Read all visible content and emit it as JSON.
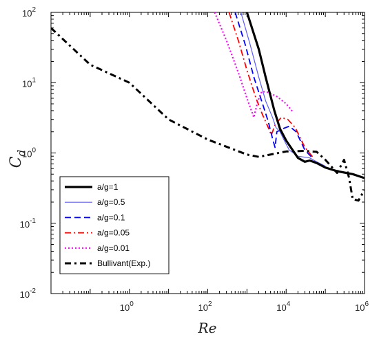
{
  "chart_data": {
    "type": "line",
    "xlabel": "Re",
    "ylabel_main": "C",
    "ylabel_sub": "d",
    "xscale": "log",
    "yscale": "log",
    "xlim": [
      0.01,
      1000000
    ],
    "ylim": [
      0.01,
      100
    ],
    "x_ticks": [
      {
        "base": "10",
        "exp": "0",
        "value": 1
      },
      {
        "base": "10",
        "exp": "2",
        "value": 100
      },
      {
        "base": "10",
        "exp": "4",
        "value": 10000
      },
      {
        "base": "10",
        "exp": "6",
        "value": 1000000
      }
    ],
    "y_ticks": [
      {
        "base": "10",
        "exp": "-2",
        "value": 0.01
      },
      {
        "base": "10",
        "exp": "-1",
        "value": 0.1
      },
      {
        "base": "10",
        "exp": "0",
        "value": 1
      },
      {
        "base": "10",
        "exp": "1",
        "value": 10
      },
      {
        "base": "10",
        "exp": "2",
        "value": 100
      }
    ],
    "grid": false,
    "legend_position": "bottom-left",
    "series": [
      {
        "name": "a/g=1",
        "color": "#000000",
        "dash": "solid",
        "width": 3.2,
        "points": [
          [
            1000,
            100
          ],
          [
            2000,
            30
          ],
          [
            3000,
            12
          ],
          [
            5000,
            4
          ],
          [
            7000,
            2.2
          ],
          [
            10000,
            1.5
          ],
          [
            20000,
            0.85
          ],
          [
            30000,
            0.75
          ],
          [
            40000,
            0.78
          ],
          [
            60000,
            0.72
          ],
          [
            100000,
            0.62
          ],
          [
            200000,
            0.55
          ],
          [
            500000,
            0.5
          ],
          [
            1000000,
            0.44
          ]
        ]
      },
      {
        "name": "a/g=0.5",
        "color": "#5a5aff",
        "dash": "solid",
        "width": 1.2,
        "points": [
          [
            700,
            100
          ],
          [
            1200,
            35
          ],
          [
            2000,
            12
          ],
          [
            3000,
            5.5
          ],
          [
            4500,
            3.2
          ],
          [
            5500,
            2.3
          ],
          [
            7000,
            2.0
          ],
          [
            9000,
            1.5
          ],
          [
            12000,
            1.1
          ],
          [
            20000,
            0.9
          ],
          [
            40000,
            0.85
          ],
          [
            60000,
            0.75
          ],
          [
            100000,
            0.65
          ]
        ]
      },
      {
        "name": "a/g=0.1",
        "color": "#0000ff",
        "dash": "dashed",
        "width": 1.8,
        "points": [
          [
            500,
            100
          ],
          [
            900,
            35
          ],
          [
            1500,
            12
          ],
          [
            2500,
            5
          ],
          [
            3500,
            2.8
          ],
          [
            4500,
            1.6
          ],
          [
            5200,
            1.2
          ],
          [
            5800,
            2.0
          ],
          [
            8000,
            2.2
          ],
          [
            12000,
            2.4
          ],
          [
            18000,
            2.0
          ],
          [
            30000,
            1.1
          ],
          [
            50000,
            0.82
          ]
        ]
      },
      {
        "name": "a/g=0.05",
        "color": "#ff0000",
        "dash": "dashdot",
        "width": 1.8,
        "points": [
          [
            350,
            100
          ],
          [
            600,
            40
          ],
          [
            1000,
            15
          ],
          [
            1700,
            6
          ],
          [
            2500,
            3.5
          ],
          [
            3500,
            2.3
          ],
          [
            4200,
            1.8
          ],
          [
            5200,
            2.5
          ],
          [
            7500,
            3.2
          ],
          [
            11000,
            3.0
          ],
          [
            17000,
            2.3
          ],
          [
            30000,
            1.2
          ],
          [
            50000,
            0.85
          ]
        ]
      },
      {
        "name": "a/g=0.01",
        "color": "#ff00ff",
        "dash": "dotted",
        "width": 2.2,
        "points": [
          [
            150,
            100
          ],
          [
            300,
            40
          ],
          [
            600,
            14
          ],
          [
            1000,
            6
          ],
          [
            1500,
            3.2
          ],
          [
            1900,
            5.5
          ],
          [
            2400,
            7.5
          ],
          [
            3500,
            7.3
          ],
          [
            6000,
            6.3
          ],
          [
            10000,
            5.0
          ],
          [
            15000,
            3.8
          ]
        ]
      },
      {
        "name": "Bullivant(Exp.)",
        "color": "#000000",
        "dash": "dashdotheavy",
        "width": 3.0,
        "points": [
          [
            0.01,
            60
          ],
          [
            0.1,
            18
          ],
          [
            1,
            10
          ],
          [
            10,
            3
          ],
          [
            100,
            1.55
          ],
          [
            1000,
            0.95
          ],
          [
            2000,
            0.88
          ],
          [
            3000,
            0.92
          ],
          [
            10000,
            1.05
          ],
          [
            30000,
            1.07
          ],
          [
            60000,
            1.04
          ],
          [
            100000,
            0.8
          ],
          [
            200000,
            0.52
          ],
          [
            300000,
            0.8
          ],
          [
            400000,
            0.45
          ],
          [
            500000,
            0.22
          ],
          [
            700000,
            0.21
          ],
          [
            1000000,
            0.3
          ]
        ]
      }
    ]
  }
}
